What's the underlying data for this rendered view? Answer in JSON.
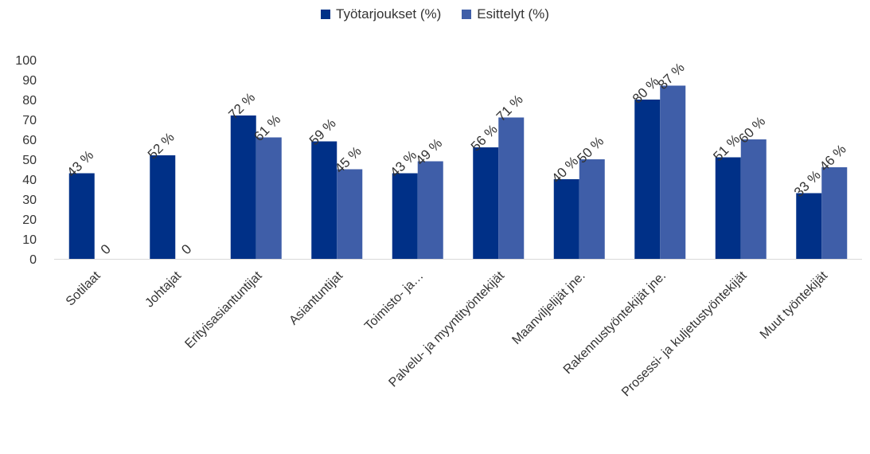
{
  "chart_data": {
    "type": "bar",
    "title": "",
    "xlabel": "",
    "ylabel": "",
    "ylim": [
      0,
      100
    ],
    "yticks": [
      0,
      10,
      20,
      30,
      40,
      50,
      60,
      70,
      80,
      90,
      100
    ],
    "grid": false,
    "legend_position": "top-center",
    "categories": [
      "Sotilaat",
      "Johtajat",
      "Erityisasiantuntijat",
      "Asiantuntijat",
      "Toimisto- ja…",
      "Palvelu- ja myyntityöntekijät",
      "Maanviljelijät jne.",
      "Rakennustyöntekijät jne.",
      "Prosessi- ja kuljetustyöntekijät",
      "Muut työntekijät"
    ],
    "series": [
      {
        "name": "Työtarjoukset (%)",
        "color": "#003087",
        "values": [
          43,
          52,
          72,
          59,
          43,
          56,
          40,
          80,
          51,
          33
        ],
        "labels": [
          "43 %",
          "52 %",
          "72 %",
          "59 %",
          "43 %",
          "56 %",
          "40 %",
          "80 %",
          "51 %",
          "33 %"
        ]
      },
      {
        "name": "Esittelyt (%)",
        "color": "#3f5ea8",
        "values": [
          0,
          0,
          61,
          45,
          49,
          71,
          50,
          87,
          60,
          46
        ],
        "labels": [
          "0",
          "0",
          "61 %",
          "45 %",
          "49 %",
          "71 %",
          "50 %",
          "87 %",
          "60 %",
          "46 %"
        ]
      }
    ]
  }
}
